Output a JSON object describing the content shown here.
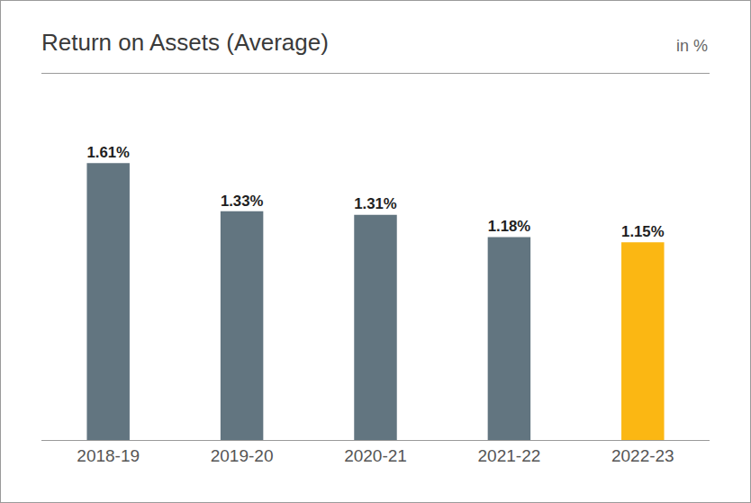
{
  "chart_data": {
    "type": "bar",
    "title": "Return on Assets (Average)",
    "subtitle": "in %",
    "categories": [
      "2018-19",
      "2019-20",
      "2020-21",
      "2021-22",
      "2022-23"
    ],
    "values": [
      1.61,
      1.33,
      1.31,
      1.18,
      1.15
    ],
    "value_labels": [
      "1.61%",
      "1.33%",
      "1.31%",
      "1.18%",
      "1.15%"
    ],
    "colors": [
      "#627580",
      "#627580",
      "#627580",
      "#627580",
      "#fbb713"
    ],
    "ylim": [
      0,
      2.13
    ],
    "grid": false,
    "data_labels": true,
    "tick_labels": "x"
  }
}
